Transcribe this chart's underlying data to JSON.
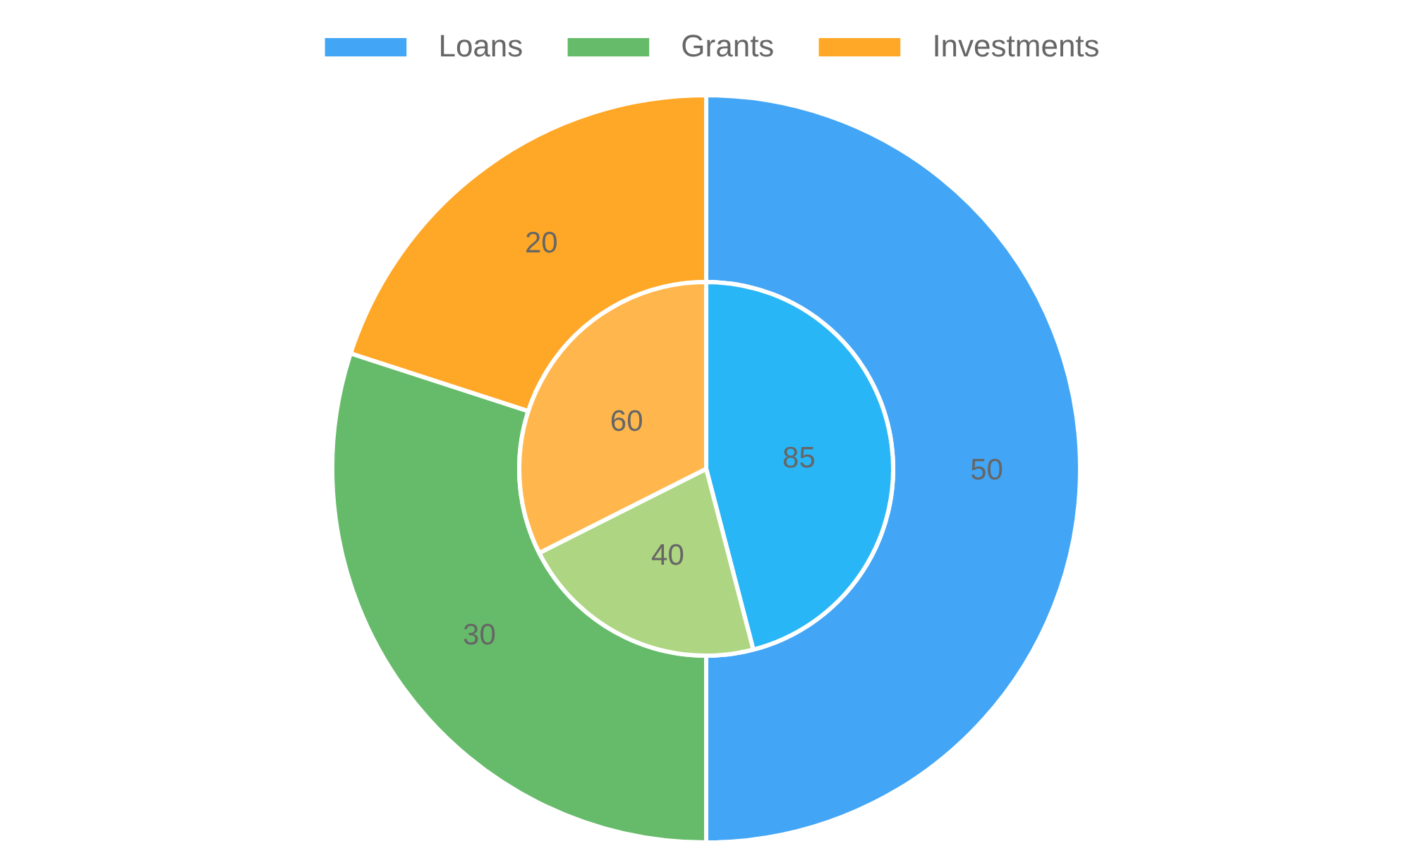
{
  "chart_data": {
    "type": "pie",
    "categories": [
      "Loans",
      "Grants",
      "Investments"
    ],
    "series": [
      {
        "values": [
          50,
          30,
          20
        ],
        "colors": [
          "#42a5f5",
          "#66bb6a",
          "#ffa726"
        ]
      },
      {
        "values": [
          85,
          40,
          60
        ],
        "colors": [
          "#29b6f6",
          "#aed581",
          "#ffb74d"
        ]
      }
    ],
    "data_labels": true,
    "legend": "top"
  }
}
